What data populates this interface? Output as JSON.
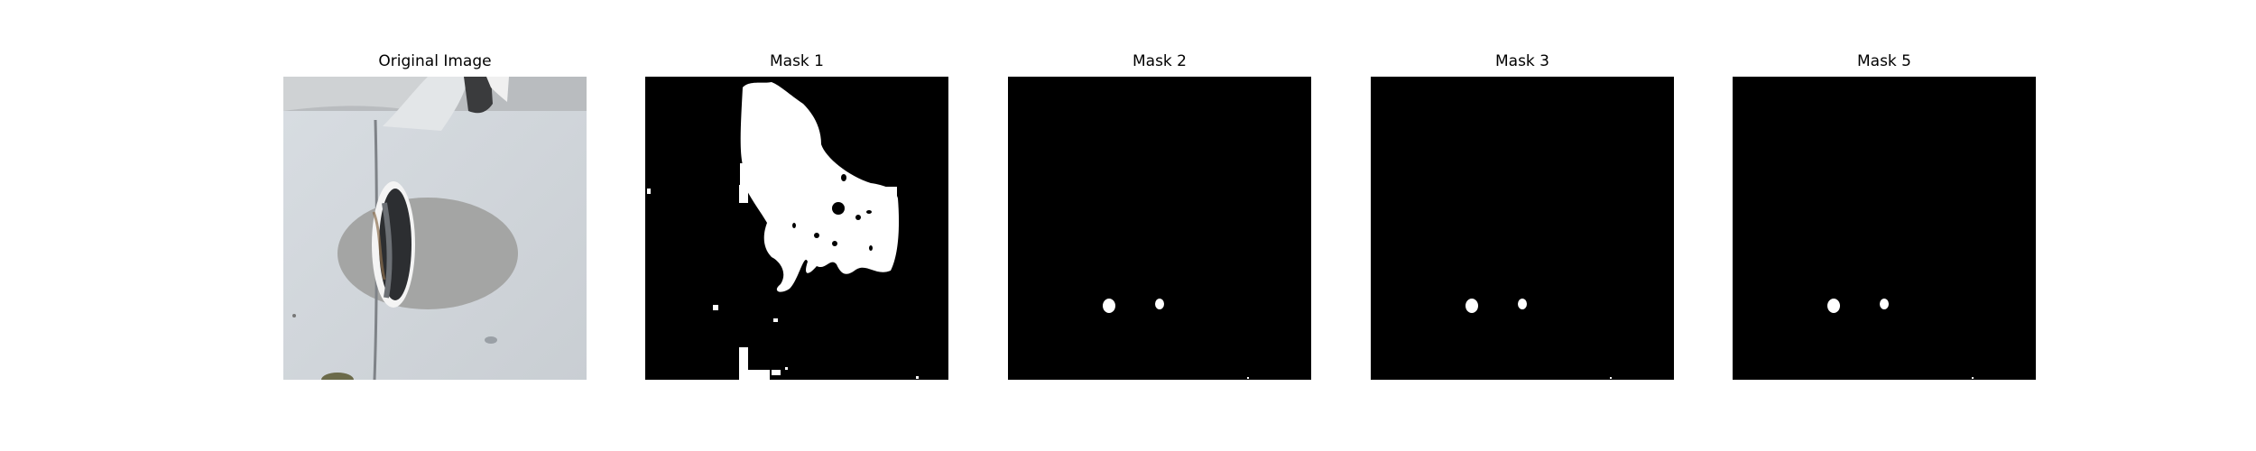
{
  "figure": {
    "panels": [
      {
        "title": "Original Image",
        "kind": "photo"
      },
      {
        "title": "Mask 1",
        "kind": "mask"
      },
      {
        "title": "Mask 2",
        "kind": "mask"
      },
      {
        "title": "Mask 3",
        "kind": "mask"
      },
      {
        "title": "Mask 5",
        "kind": "mask"
      }
    ]
  },
  "colors": {
    "background": "#ffffff",
    "mask_bg": "#000000",
    "mask_fg": "#ffffff",
    "photo_panel": "#d2d6da",
    "photo_oval": "#a4a5a4"
  }
}
